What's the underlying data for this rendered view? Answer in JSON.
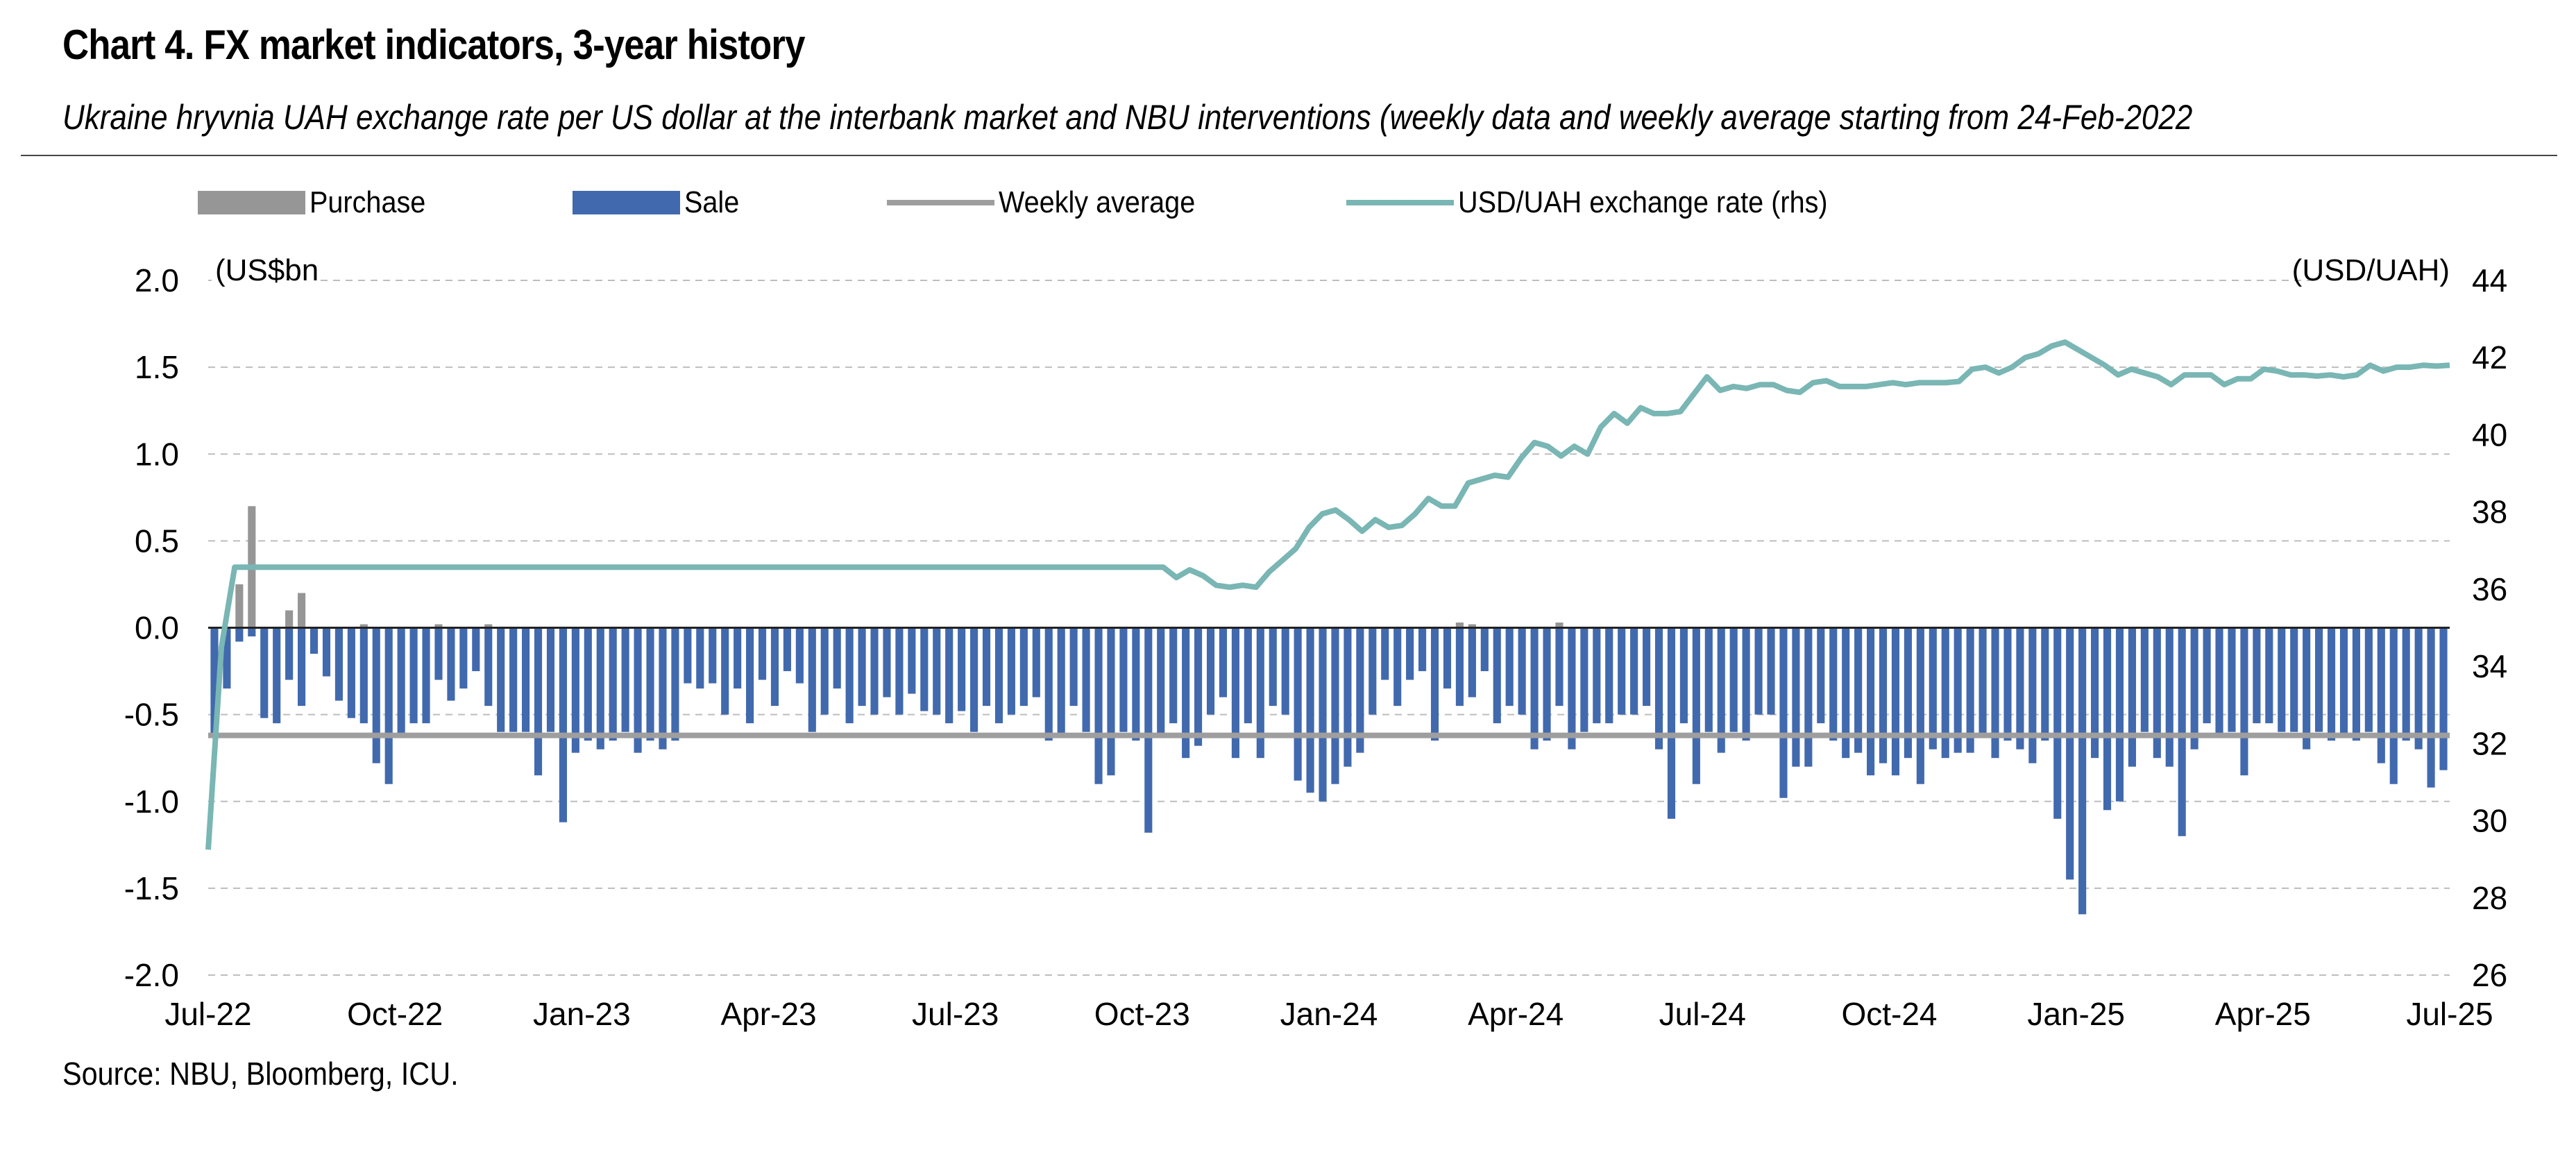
{
  "title": "Chart 4. FX market indicators, 3-year history",
  "subtitle": "Ukraine hryvnia UAH exchange rate per US dollar at the interbank market and NBU interventions (weekly data and weekly average starting from 24-Feb-2022",
  "source": "Source: NBU, Bloomberg, ICU.",
  "legend": {
    "purchase": "Purchase",
    "sale": "Sale",
    "weekly_average": "Weekly average",
    "rate": "USD/UAH exchange rate (rhs)"
  },
  "colors": {
    "purchase": "#969696",
    "sale": "#4169AE",
    "weekly_average": "#9E9E9E",
    "rate": "#79B6B4",
    "grid": "#BDBDBD"
  },
  "chart_data": {
    "type": "bar",
    "left_axis_label": "(US$bn",
    "right_axis_label": "(USD/UAH)",
    "ylim_left": [
      -2.0,
      2.0
    ],
    "ylim_right": [
      26,
      44
    ],
    "y_ticks_left": [
      "2.0",
      "1.5",
      "1.0",
      "0.5",
      "0.0",
      "-0.5",
      "-1.0",
      "-1.5",
      "-2.0"
    ],
    "y_ticks_right": [
      "44",
      "42",
      "40",
      "38",
      "36",
      "34",
      "32",
      "30",
      "28",
      "26"
    ],
    "x_ticks": [
      "Jul-22",
      "Oct-22",
      "Jan-23",
      "Apr-23",
      "Jul-23",
      "Oct-23",
      "Jan-24",
      "Apr-24",
      "Jul-24",
      "Oct-24",
      "Jan-25",
      "Apr-25",
      "Jul-25"
    ],
    "weekly_average": -0.62,
    "sale": [
      -0.62,
      -0.35,
      -0.08,
      -0.05,
      -0.52,
      -0.55,
      -0.3,
      -0.45,
      -0.15,
      -0.28,
      -0.42,
      -0.52,
      -0.55,
      -0.78,
      -0.9,
      -0.62,
      -0.55,
      -0.55,
      -0.3,
      -0.42,
      -0.35,
      -0.25,
      -0.45,
      -0.6,
      -0.6,
      -0.6,
      -0.85,
      -0.6,
      -1.12,
      -0.72,
      -0.65,
      -0.7,
      -0.65,
      -0.6,
      -0.72,
      -0.65,
      -0.7,
      -0.65,
      -0.32,
      -0.35,
      -0.32,
      -0.5,
      -0.35,
      -0.55,
      -0.3,
      -0.45,
      -0.25,
      -0.32,
      -0.6,
      -0.5,
      -0.35,
      -0.55,
      -0.45,
      -0.5,
      -0.4,
      -0.5,
      -0.38,
      -0.48,
      -0.5,
      -0.55,
      -0.48,
      -0.6,
      -0.45,
      -0.55,
      -0.5,
      -0.45,
      -0.4,
      -0.65,
      -0.62,
      -0.45,
      -0.6,
      -0.9,
      -0.85,
      -0.6,
      -0.65,
      -1.18,
      -0.62,
      -0.55,
      -0.75,
      -0.68,
      -0.5,
      -0.4,
      -0.75,
      -0.55,
      -0.75,
      -0.45,
      -0.5,
      -0.88,
      -0.95,
      -1.0,
      -0.9,
      -0.8,
      -0.72,
      -0.5,
      -0.3,
      -0.45,
      -0.3,
      -0.25,
      -0.65,
      -0.35,
      -0.45,
      -0.4,
      -0.25,
      -0.55,
      -0.45,
      -0.5,
      -0.7,
      -0.65,
      -0.45,
      -0.7,
      -0.6,
      -0.55,
      -0.55,
      -0.5,
      -0.5,
      -0.45,
      -0.7,
      -1.1,
      -0.55,
      -0.9,
      -0.6,
      -0.72,
      -0.6,
      -0.65,
      -0.5,
      -0.5,
      -0.98,
      -0.8,
      -0.8,
      -0.55,
      -0.65,
      -0.75,
      -0.72,
      -0.85,
      -0.78,
      -0.85,
      -0.75,
      -0.9,
      -0.7,
      -0.75,
      -0.72,
      -0.72,
      -0.62,
      -0.75,
      -0.65,
      -0.7,
      -0.78,
      -0.65,
      -1.1,
      -1.45,
      -1.65,
      -0.75,
      -1.05,
      -1.0,
      -0.8,
      -0.6,
      -0.75,
      -0.8,
      -1.2,
      -0.7,
      -0.55,
      -0.62,
      -0.6,
      -0.85,
      -0.55,
      -0.55,
      -0.6,
      -0.6,
      -0.7,
      -0.6,
      -0.65,
      -0.62,
      -0.65,
      -0.6,
      -0.78,
      -0.9,
      -0.65,
      -0.7,
      -0.92,
      -0.82
    ],
    "purchase": [
      0,
      0,
      0.25,
      0.7,
      0,
      0,
      0.1,
      0.2,
      0,
      0,
      0,
      0,
      0.02,
      0,
      0,
      0,
      0,
      0,
      0.02,
      0,
      0,
      0,
      0.02,
      0,
      0,
      0,
      0,
      0,
      0,
      0,
      0,
      0,
      0,
      0,
      0,
      0,
      0,
      0,
      0,
      0,
      0,
      0,
      0,
      0,
      0,
      0,
      0,
      0,
      0,
      0,
      0,
      0,
      0,
      0,
      0,
      0,
      0,
      0,
      0,
      0,
      0,
      0,
      0,
      0,
      0,
      0,
      0,
      0,
      0,
      0,
      0,
      0,
      0,
      0,
      0,
      0,
      0,
      0,
      0,
      0,
      0,
      0,
      0,
      0,
      0,
      0,
      0,
      0,
      0,
      0,
      0,
      0,
      0,
      0,
      0,
      0,
      0,
      0,
      0,
      0,
      0.03,
      0.02,
      0,
      0,
      0,
      0,
      0,
      0,
      0.03,
      0,
      0,
      0,
      0,
      0,
      0,
      0,
      0,
      0,
      0,
      0,
      0,
      0,
      0,
      0,
      0,
      0,
      0,
      0,
      0,
      0,
      0,
      0,
      0,
      0,
      0,
      0,
      0,
      0,
      0,
      0,
      0,
      0,
      0,
      0,
      0,
      0,
      0,
      0,
      0,
      0,
      0,
      0,
      0,
      0,
      0,
      0,
      0,
      0,
      0,
      0,
      0,
      0,
      0,
      0,
      0,
      0,
      0,
      0,
      0,
      0,
      0,
      0,
      0,
      0,
      0,
      0,
      0,
      0,
      0,
      0,
      0,
      0,
      0
    ],
    "rate": [
      29.25,
      34.5,
      36.57,
      36.57,
      36.57,
      36.57,
      36.57,
      36.57,
      36.57,
      36.57,
      36.57,
      36.57,
      36.57,
      36.57,
      36.57,
      36.57,
      36.57,
      36.57,
      36.57,
      36.57,
      36.57,
      36.57,
      36.57,
      36.57,
      36.57,
      36.57,
      36.57,
      36.57,
      36.57,
      36.57,
      36.57,
      36.57,
      36.57,
      36.57,
      36.57,
      36.57,
      36.57,
      36.57,
      36.57,
      36.57,
      36.57,
      36.57,
      36.57,
      36.57,
      36.57,
      36.57,
      36.57,
      36.57,
      36.57,
      36.57,
      36.57,
      36.57,
      36.57,
      36.57,
      36.57,
      36.57,
      36.57,
      36.57,
      36.57,
      36.57,
      36.57,
      36.57,
      36.57,
      36.57,
      36.57,
      36.57,
      36.57,
      36.57,
      36.57,
      36.57,
      36.57,
      36.57,
      36.57,
      36.3,
      36.5,
      36.35,
      36.1,
      36.05,
      36.1,
      36.05,
      36.45,
      36.75,
      37.05,
      37.6,
      37.95,
      38.05,
      37.8,
      37.5,
      37.8,
      37.6,
      37.65,
      37.95,
      38.35,
      38.15,
      38.15,
      38.75,
      38.85,
      38.95,
      38.9,
      39.4,
      39.8,
      39.7,
      39.45,
      39.7,
      39.5,
      40.2,
      40.55,
      40.3,
      40.7,
      40.55,
      40.55,
      40.6,
      41.05,
      41.5,
      41.15,
      41.25,
      41.2,
      41.3,
      41.3,
      41.15,
      41.1,
      41.35,
      41.4,
      41.25,
      41.25,
      41.25,
      41.3,
      41.35,
      41.3,
      41.35,
      41.35,
      41.35,
      41.38,
      41.7,
      41.75,
      41.6,
      41.75,
      42.0,
      42.1,
      42.3,
      42.4,
      42.2,
      42.0,
      41.8,
      41.55,
      41.7,
      41.6,
      41.5,
      41.3,
      41.55,
      41.55,
      41.55,
      41.3,
      41.45,
      41.45,
      41.7,
      41.65,
      41.55,
      41.55,
      41.52,
      41.55,
      41.5,
      41.55,
      41.8,
      41.65,
      41.75,
      41.75,
      41.8,
      41.78,
      41.8
    ]
  }
}
